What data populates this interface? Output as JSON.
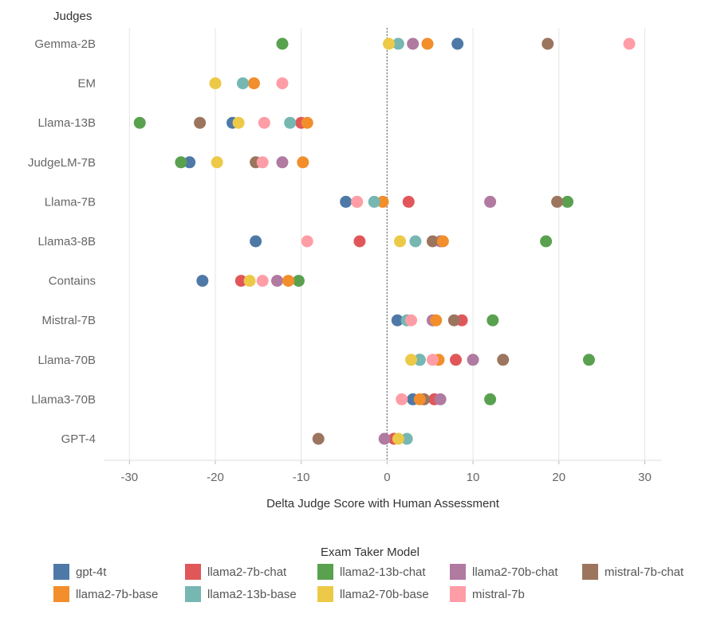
{
  "chart_data": {
    "type": "scatter",
    "y_axis_header": "Judges",
    "xlabel": "Delta Judge Score with Human Assessment",
    "xlim": [
      -33,
      32
    ],
    "xticks": [
      -30,
      -20,
      -10,
      0,
      10,
      20,
      30
    ],
    "xtick_labels": [
      "-30",
      "-20",
      "-10",
      "0",
      "10",
      "20",
      "30"
    ],
    "reference_line": 0,
    "judges": [
      "Gemma-2B",
      "EM",
      "Llama-13B",
      "JudgeLM-7B",
      "Llama-7B",
      "Llama3-8B",
      "Contains",
      "Mistral-7B",
      "Llama-70B",
      "Llama3-70B",
      "GPT-4"
    ],
    "legend_title": "Exam Taker Model",
    "legend_position": "bottom",
    "series": [
      {
        "name": "gpt-4t",
        "color": "#4e79a7",
        "values": [
          8.2,
          null,
          -18.0,
          -23.0,
          -4.8,
          -15.3,
          -21.5,
          1.2,
          3.8,
          3.0,
          null
        ]
      },
      {
        "name": "llama2-7b-chat",
        "color": "#e15759",
        "values": [
          null,
          null,
          -10.0,
          null,
          2.5,
          -3.2,
          -17.0,
          8.7,
          8.0,
          5.5,
          0.8
        ]
      },
      {
        "name": "llama2-13b-chat",
        "color": "#59a14f",
        "values": [
          -12.2,
          null,
          -28.8,
          -24.0,
          21.0,
          18.5,
          -10.3,
          12.3,
          23.5,
          12.0,
          null
        ]
      },
      {
        "name": "llama2-70b-chat",
        "color": "#b07aa1",
        "values": [
          3.0,
          null,
          null,
          -12.2,
          12.0,
          6.2,
          -12.8,
          5.3,
          10.0,
          6.2,
          -0.3
        ]
      },
      {
        "name": "mistral-7b-chat",
        "color": "#9c755f",
        "values": [
          18.7,
          null,
          -21.8,
          -15.3,
          19.8,
          5.3,
          null,
          7.8,
          13.5,
          4.3,
          -8.0
        ]
      },
      {
        "name": "llama2-7b-base",
        "color": "#f28e2b",
        "values": [
          4.7,
          -15.5,
          -9.3,
          -9.8,
          -0.5,
          6.5,
          -11.5,
          5.7,
          6.0,
          3.8,
          null
        ]
      },
      {
        "name": "llama2-13b-base",
        "color": "#76b7b2",
        "values": [
          1.3,
          -16.8,
          -11.3,
          null,
          -1.5,
          3.3,
          null,
          2.3,
          3.8,
          null,
          2.3
        ]
      },
      {
        "name": "llama2-70b-base",
        "color": "#edc948",
        "values": [
          0.2,
          -20.0,
          -17.3,
          -19.8,
          -3.5,
          1.5,
          -16.0,
          null,
          2.8,
          null,
          1.3
        ]
      },
      {
        "name": "mistral-7b",
        "color": "#ff9da7",
        "values": [
          28.2,
          -12.2,
          -14.3,
          -14.5,
          -3.5,
          -9.3,
          -14.5,
          2.8,
          5.3,
          1.7,
          null
        ]
      }
    ]
  }
}
